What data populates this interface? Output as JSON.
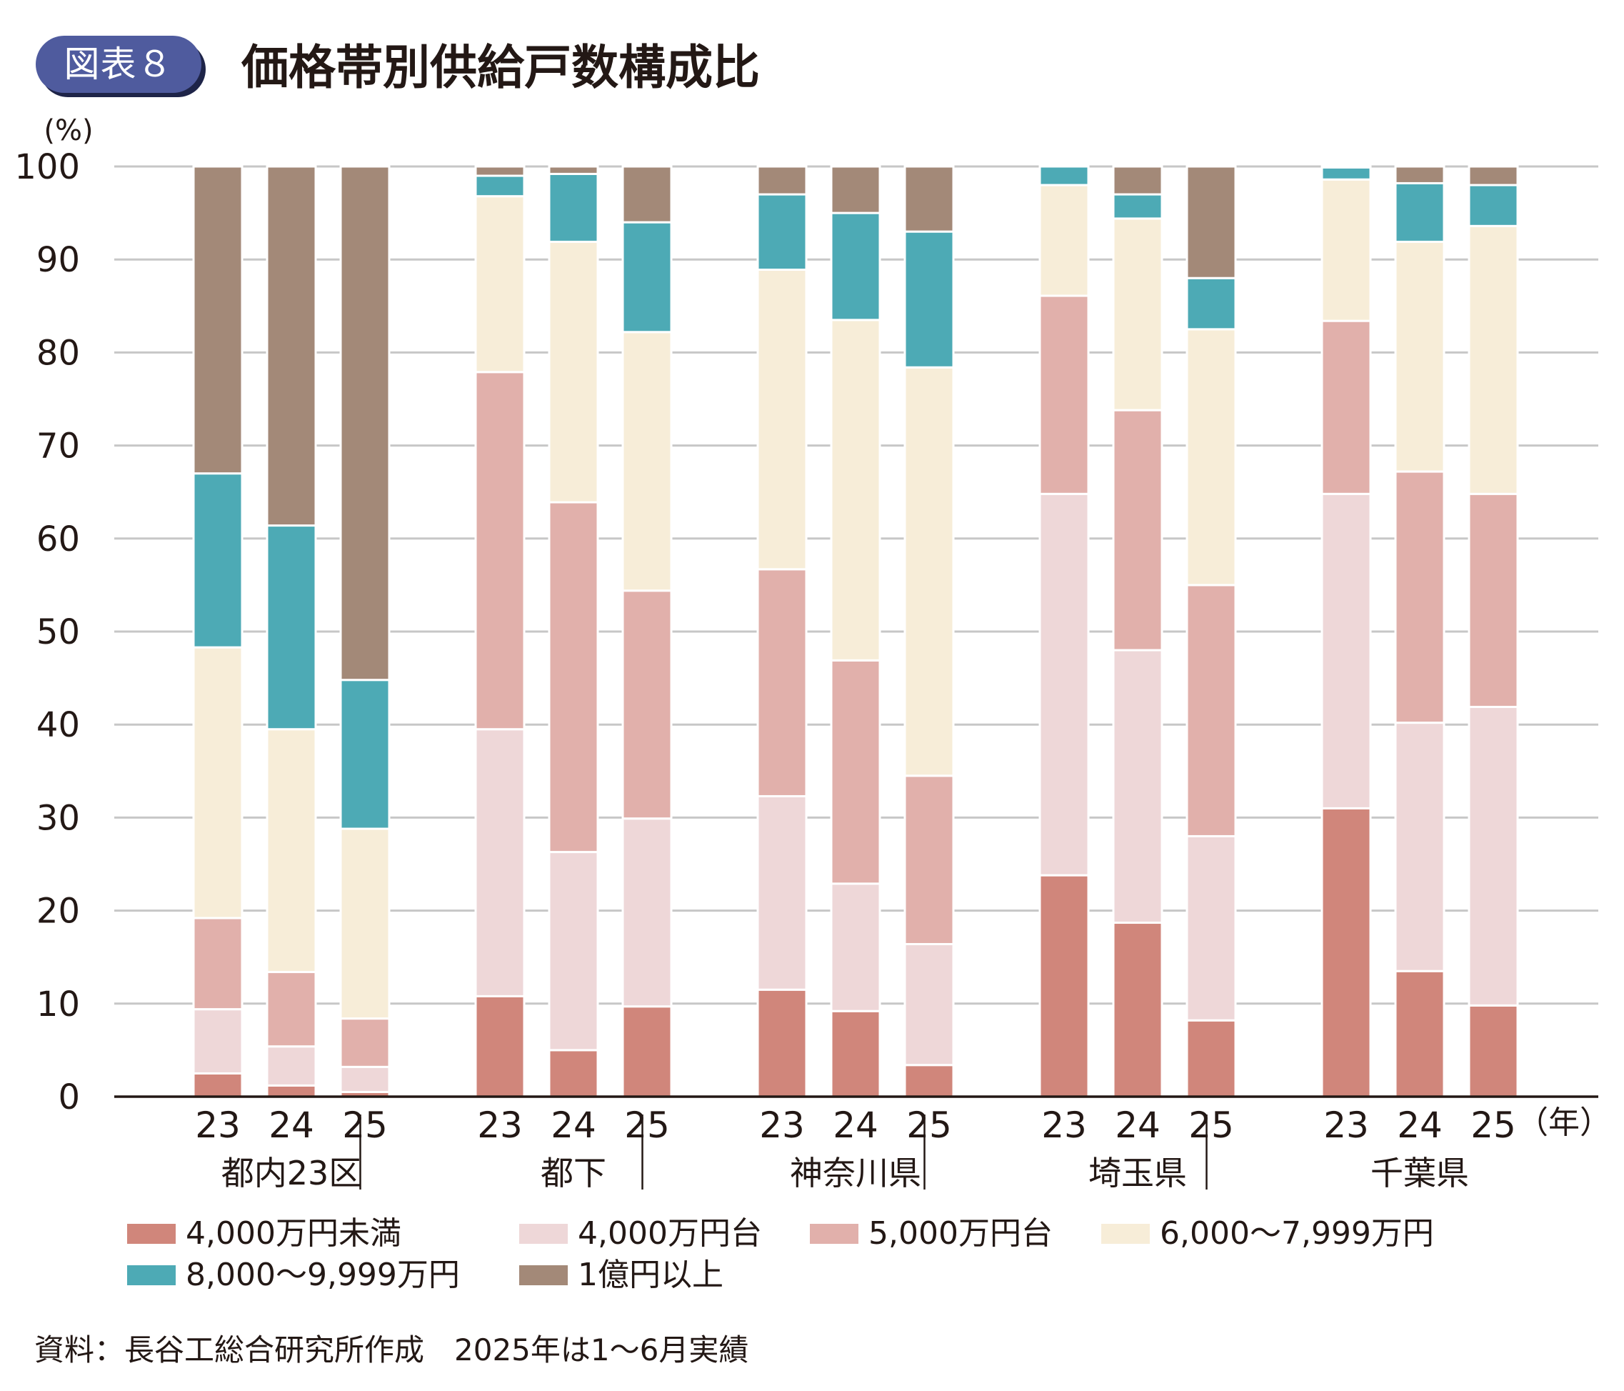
{
  "figure": {
    "badge": "図表８",
    "title": "価格帯別供給戸数構成比",
    "source": "資料：長谷工総合研究所作成　2025年は1～6月実績"
  },
  "chart_data": {
    "type": "bar",
    "stacked": true,
    "ylabel": "(%)",
    "xunit": "（年）",
    "ylim": [
      0,
      100
    ],
    "yticks": [
      0,
      10,
      20,
      30,
      40,
      50,
      60,
      70,
      80,
      90,
      100
    ],
    "grid": true,
    "groups": [
      "都内23区",
      "都下",
      "神奈川県",
      "埼玉県",
      "千葉県"
    ],
    "years": [
      "23",
      "24",
      "25"
    ],
    "series": [
      {
        "name": "4,000万円未満",
        "color": "#d0867b",
        "values": [
          2.5,
          1.2,
          0.5,
          10.8,
          5.0,
          9.7,
          11.5,
          9.2,
          3.4,
          23.8,
          18.7,
          8.2,
          31.0,
          13.5,
          9.8
        ]
      },
      {
        "name": "4,000万円台",
        "color": "#eed7d8",
        "values": [
          6.9,
          4.2,
          2.7,
          28.7,
          21.3,
          20.2,
          20.8,
          13.7,
          13.0,
          41.0,
          29.3,
          19.8,
          33.8,
          26.7,
          32.1
        ]
      },
      {
        "name": "5,000万円台",
        "color": "#e1b0ab",
        "values": [
          9.8,
          8.0,
          5.2,
          38.4,
          37.6,
          24.5,
          24.4,
          24.0,
          18.1,
          21.3,
          25.8,
          27.0,
          18.6,
          27.0,
          22.9
        ]
      },
      {
        "name": "6,000～7,999万円",
        "color": "#f7edd8",
        "values": [
          29.1,
          26.1,
          20.4,
          18.9,
          28.0,
          27.8,
          32.2,
          36.6,
          43.9,
          11.9,
          20.6,
          27.5,
          15.2,
          24.7,
          28.8
        ]
      },
      {
        "name": "8,000～9,999万円",
        "color": "#4daab5",
        "values": [
          18.7,
          21.9,
          16.0,
          2.2,
          7.3,
          11.8,
          8.1,
          11.5,
          14.6,
          2.0,
          2.6,
          5.5,
          1.3,
          6.3,
          4.4
        ]
      },
      {
        "name": "1億円以上",
        "color": "#a38978",
        "values": [
          33.0,
          38.6,
          55.2,
          1.0,
          0.8,
          6.0,
          3.0,
          5.0,
          7.0,
          0.0,
          3.0,
          12.0,
          0.1,
          1.8,
          2.0
        ]
      }
    ]
  }
}
